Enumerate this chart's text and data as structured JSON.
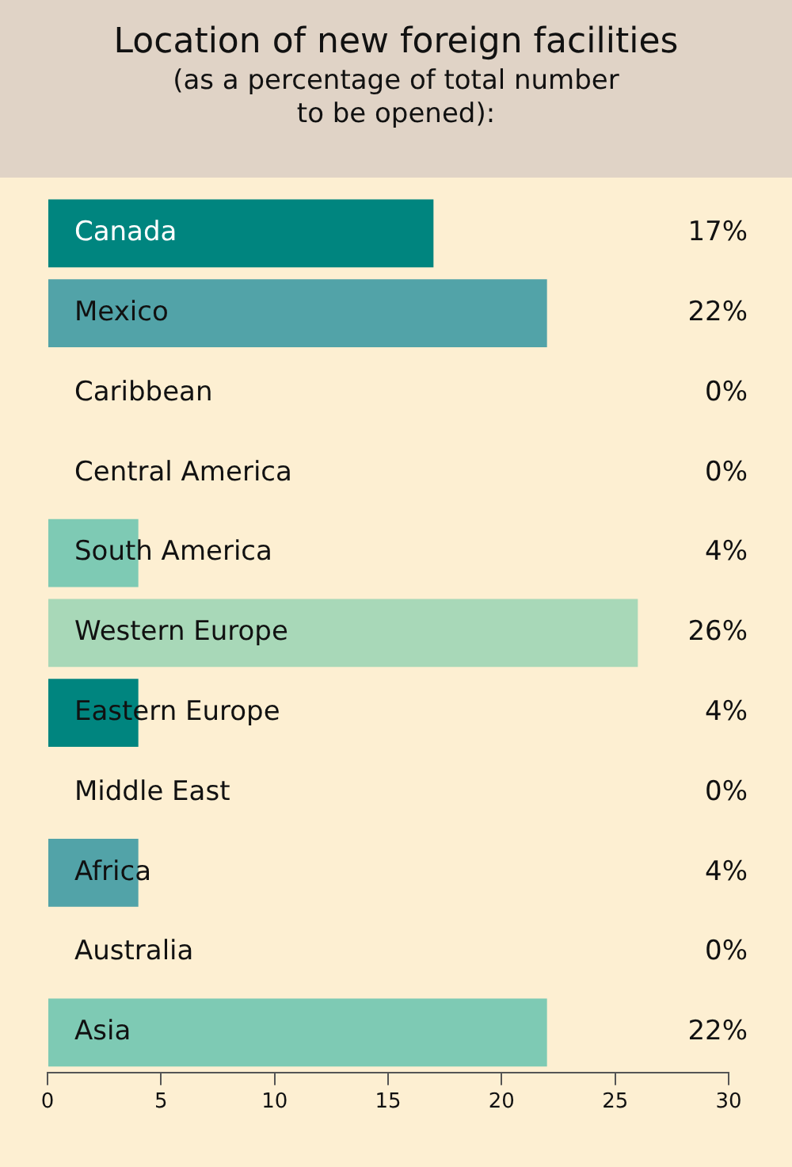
{
  "chart_data": {
    "type": "bar",
    "orientation": "horizontal",
    "title": "Location of new foreign facilities",
    "subtitle": "(as a percentage of total number to be opened):",
    "categories": [
      "Canada",
      "Mexico",
      "Caribbean",
      "Central America",
      "South America",
      "Western Europe",
      "Eastern Europe",
      "Middle East",
      "Africa",
      "Australia",
      "Asia"
    ],
    "values": [
      17,
      22,
      0,
      0,
      4,
      26,
      4,
      0,
      4,
      0,
      22
    ],
    "value_labels": [
      "17%",
      "22%",
      "0%",
      "0%",
      "4%",
      "26%",
      "4%",
      "0%",
      "4%",
      "0%",
      "22%"
    ],
    "colors": [
      "#00857f",
      "#52a3a8",
      "#7ecab4",
      "#a8d8b8",
      "#7ecab4",
      "#a8d8b8",
      "#00857f",
      "#7ecab4",
      "#52a3a8",
      "#7ecab4",
      "#7ecab4"
    ],
    "xlim": [
      0,
      30
    ],
    "xticks": [
      0,
      5,
      10,
      15,
      20,
      25,
      30
    ],
    "grid": false,
    "legend": false
  }
}
